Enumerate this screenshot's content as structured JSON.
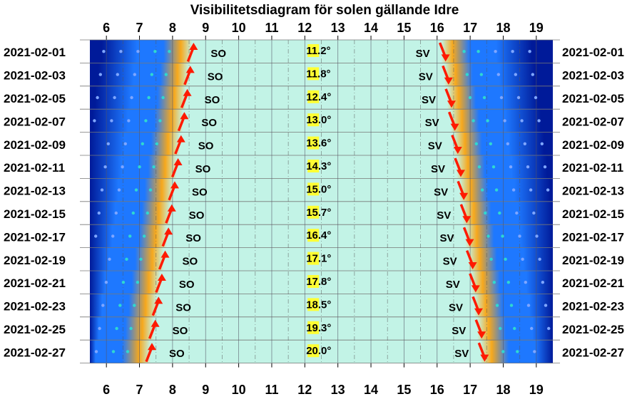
{
  "chart_data": {
    "type": "table",
    "title": "Visibilitetsdiagram för solen gällande Idre",
    "x_ticks": [
      "6",
      "7",
      "8",
      "9",
      "10",
      "11",
      "12",
      "13",
      "14",
      "15",
      "16",
      "17",
      "18",
      "19"
    ],
    "xlim": [
      5.5,
      19.5
    ],
    "dates": [
      "2021-02-01",
      "2021-02-03",
      "2021-02-05",
      "2021-02-07",
      "2021-02-09",
      "2021-02-11",
      "2021-02-13",
      "2021-02-15",
      "2021-02-17",
      "2021-02-19",
      "2021-02-21",
      "2021-02-23",
      "2021-02-25",
      "2021-02-27"
    ],
    "sunrise_hours": [
      8.55,
      8.45,
      8.36,
      8.27,
      8.17,
      8.08,
      7.98,
      7.89,
      7.79,
      7.69,
      7.59,
      7.49,
      7.39,
      7.29
    ],
    "sunset_hours": [
      16.17,
      16.26,
      16.35,
      16.45,
      16.54,
      16.63,
      16.72,
      16.81,
      16.9,
      16.99,
      17.08,
      17.17,
      17.26,
      17.35
    ],
    "rise_direction": "SO",
    "set_direction": "SV",
    "max_altitude": [
      "11.2°",
      "11.8°",
      "12.4°",
      "13.0°",
      "13.6°",
      "14.3°",
      "15.0°",
      "15.7°",
      "16.4°",
      "17.1°",
      "17.8°",
      "18.5°",
      "19.3°",
      "20.0°"
    ],
    "grid": true,
    "colors": {
      "day": "#c2f3e6",
      "night": "#001a99",
      "twilight_blue": "#1e78ff",
      "horizon_orange": "#f7a81c",
      "arrow": "#ff1a00",
      "altitude_label_bg": "#ffff33"
    }
  }
}
